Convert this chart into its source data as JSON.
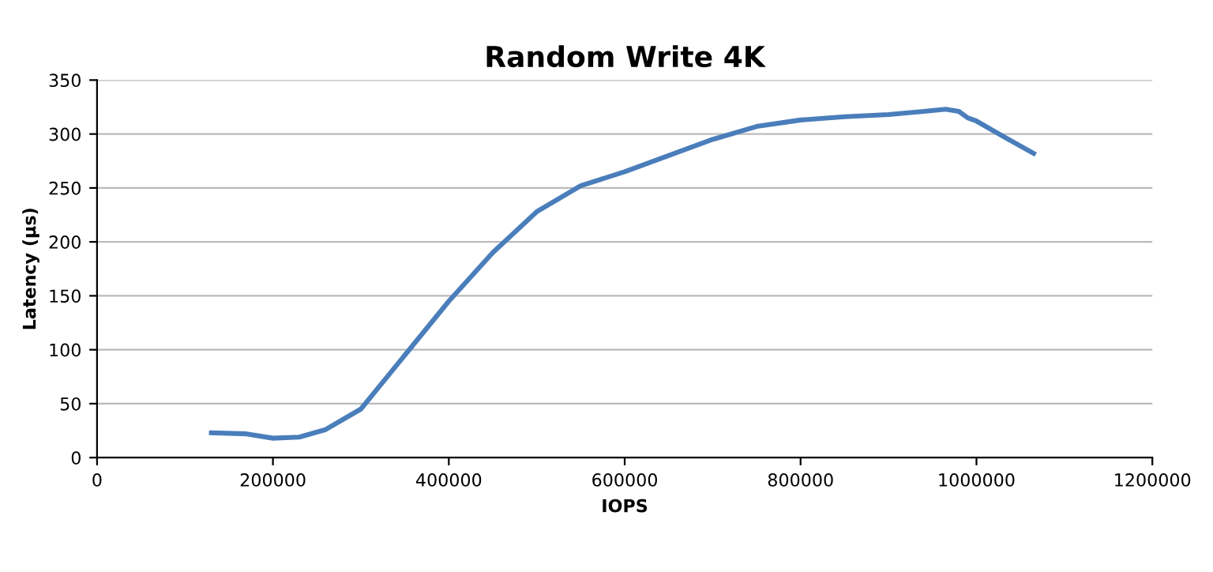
{
  "chart_data": {
    "type": "line",
    "title": "Random Write 4K",
    "xlabel": "IOPS",
    "ylabel": "Latency (µs)",
    "series": [
      {
        "color": "#4a7ebb",
        "x": [
          130000,
          170000,
          200000,
          230000,
          260000,
          300000,
          350000,
          400000,
          450000,
          500000,
          550000,
          600000,
          650000,
          700000,
          750000,
          800000,
          850000,
          900000,
          940000,
          965000,
          980000,
          990000,
          1000000,
          1030000,
          1065000
        ],
        "values": [
          23,
          22,
          18,
          19,
          26,
          45,
          95,
          145,
          190,
          228,
          252,
          265,
          280,
          295,
          307,
          313,
          316,
          318,
          321,
          323,
          321,
          315,
          312,
          298,
          282
        ]
      }
    ],
    "xlim": [
      0,
      1200000
    ],
    "xticks": [
      0,
      200000,
      400000,
      600000,
      800000,
      1000000,
      1200000
    ],
    "ylim": [
      0,
      350
    ],
    "yticks": [
      0,
      50,
      100,
      150,
      200,
      250,
      300,
      350
    ],
    "grid": "y"
  }
}
